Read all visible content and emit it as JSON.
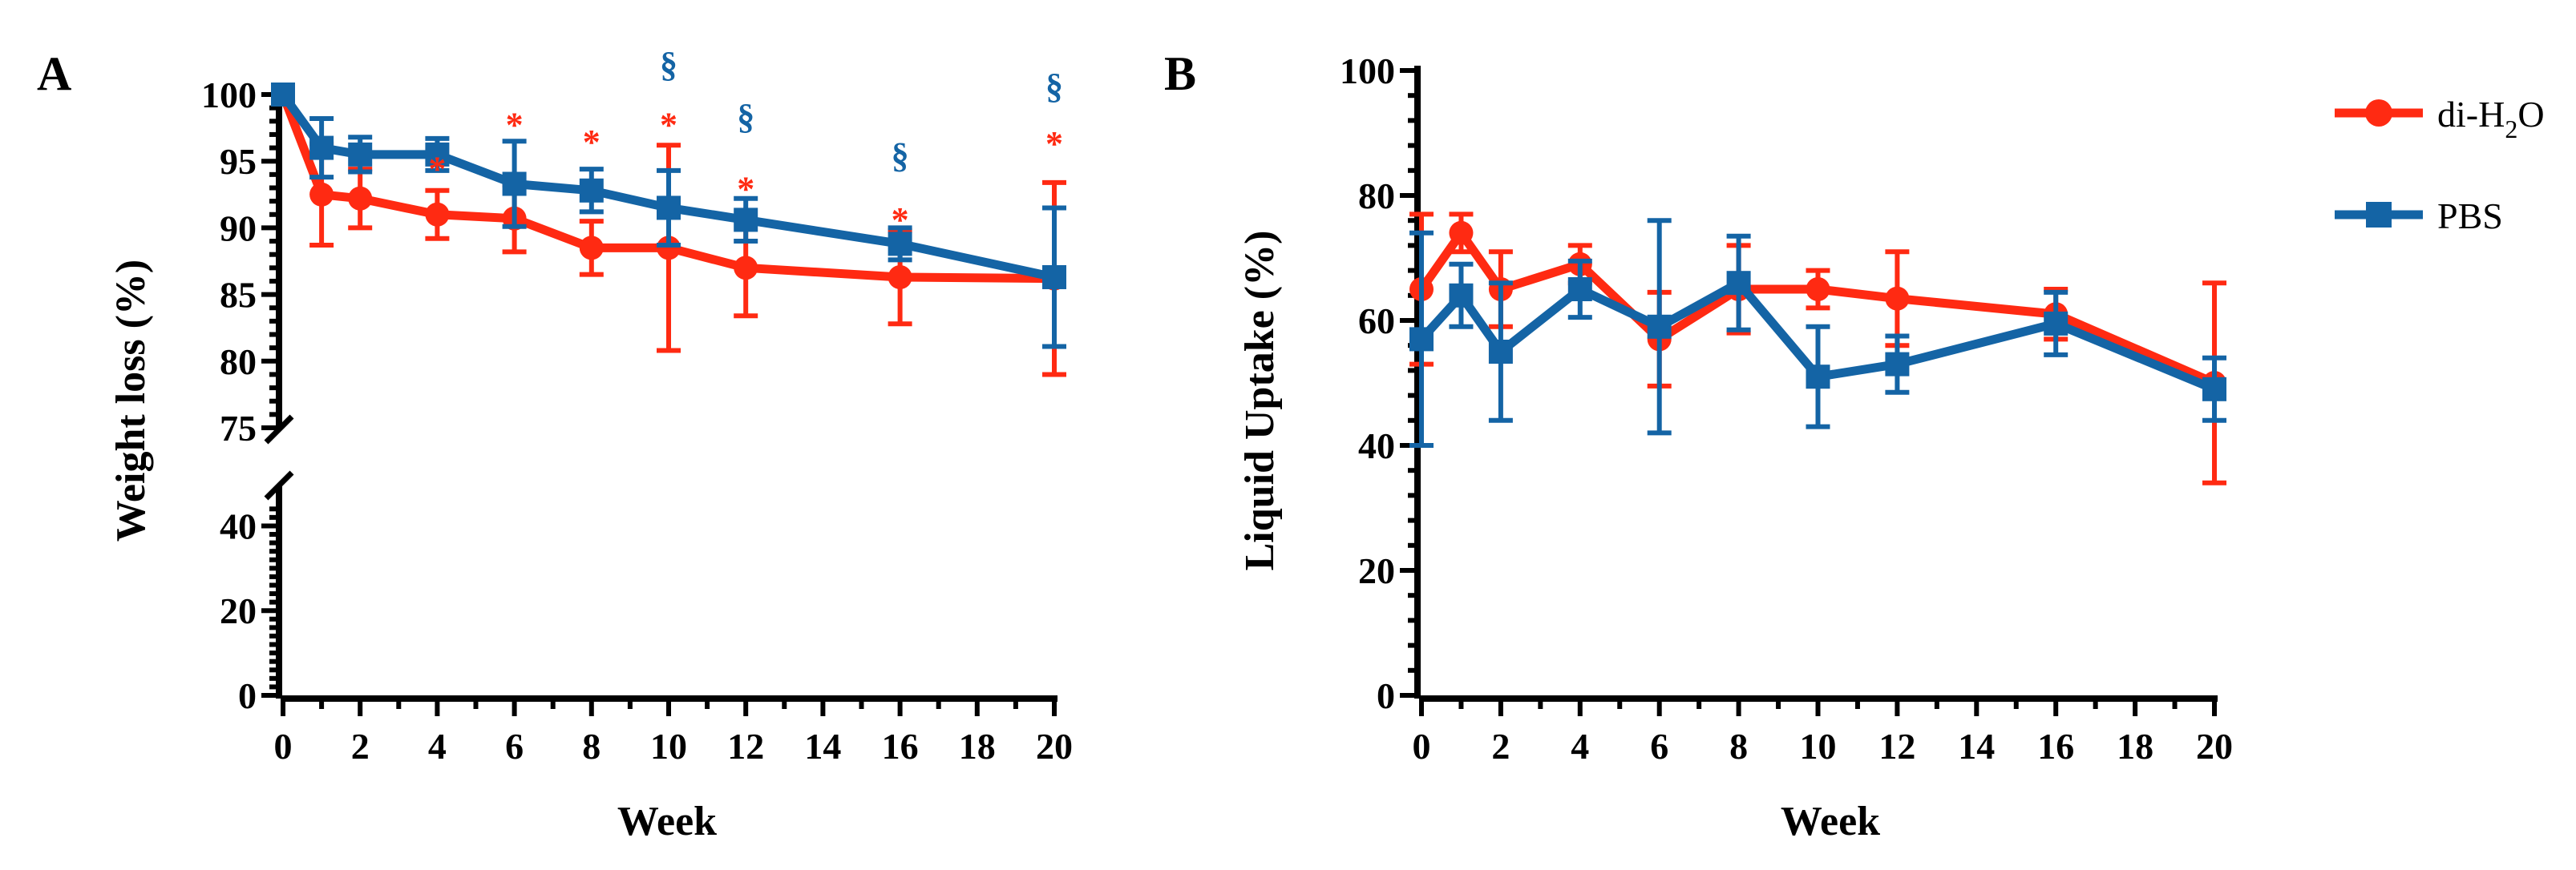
{
  "colors": {
    "series1": "#ff2a12",
    "series2": "#1464a5",
    "axis": "#000000"
  },
  "chart_data": [
    {
      "panel": "A",
      "type": "line",
      "xlabel": "Week",
      "ylabel": "Weight loss (%)",
      "xlim": [
        0,
        20
      ],
      "xticks": [
        "0",
        "2",
        "4",
        "6",
        "8",
        "10",
        "12",
        "14",
        "16",
        "18",
        "20"
      ],
      "y_axis_break": true,
      "y_upper_range": [
        75,
        100
      ],
      "y_upper_ticks": [
        "75",
        "80",
        "85",
        "90",
        "95",
        "100"
      ],
      "y_lower_range": [
        0,
        45
      ],
      "y_lower_ticks": [
        "0",
        "20",
        "40"
      ],
      "series": [
        {
          "name": "di-H2O",
          "color_key": "series1",
          "marker": "circle",
          "x": [
            0,
            1,
            2,
            4,
            6,
            8,
            10,
            12,
            16,
            20
          ],
          "y": [
            100,
            92.5,
            92.2,
            91,
            90.7,
            88.5,
            88.5,
            87,
            86.3,
            86.2
          ],
          "err": [
            0.5,
            3.8,
            2.2,
            1.8,
            2.5,
            2,
            7.7,
            3.6,
            3.5,
            7.2
          ]
        },
        {
          "name": "PBS",
          "color_key": "series2",
          "marker": "square",
          "x": [
            0,
            1,
            2,
            4,
            6,
            8,
            10,
            12,
            16,
            20
          ],
          "y": [
            100,
            96,
            95.5,
            95.5,
            93.3,
            92.8,
            91.5,
            90.6,
            88.8,
            86.3
          ],
          "err": [
            0.5,
            2.2,
            1.3,
            1.2,
            3.2,
            1.6,
            2.8,
            1.6,
            1.2,
            5.2
          ]
        }
      ],
      "annotations": [
        {
          "symbol": "*",
          "color_key": "series1",
          "x": 4,
          "y": 94.5
        },
        {
          "symbol": "*",
          "color_key": "series1",
          "x": 6,
          "y": 97.8
        },
        {
          "symbol": "*",
          "color_key": "series1",
          "x": 8,
          "y": 96.5
        },
        {
          "symbol": "*",
          "color_key": "series1",
          "x": 10,
          "y": 97.8
        },
        {
          "symbol": "*",
          "color_key": "series1",
          "x": 12,
          "y": 93
        },
        {
          "symbol": "*",
          "color_key": "series1",
          "x": 16,
          "y": 90.7
        },
        {
          "symbol": "*",
          "color_key": "series1",
          "x": 20,
          "y": 96.4
        },
        {
          "symbol": "§",
          "color_key": "series2",
          "x": 10,
          "y": 102.3
        },
        {
          "symbol": "§",
          "color_key": "series2",
          "x": 12,
          "y": 98.4
        },
        {
          "symbol": "§",
          "color_key": "series2",
          "x": 16,
          "y": 95.5
        },
        {
          "symbol": "§",
          "color_key": "series2",
          "x": 20,
          "y": 100.7
        }
      ]
    },
    {
      "panel": "B",
      "type": "line",
      "xlabel": "Week",
      "ylabel": "Liquid Uptake (%)",
      "xlim": [
        0,
        20
      ],
      "xticks": [
        "0",
        "2",
        "4",
        "6",
        "8",
        "10",
        "12",
        "14",
        "16",
        "18",
        "20"
      ],
      "ylim": [
        0,
        100
      ],
      "yticks": [
        "0",
        "20",
        "40",
        "60",
        "80",
        "100"
      ],
      "series": [
        {
          "name": "di-H2O",
          "color_key": "series1",
          "marker": "circle",
          "x": [
            0,
            1,
            2,
            4,
            6,
            8,
            10,
            12,
            16,
            20
          ],
          "y": [
            65,
            74,
            65,
            69,
            57,
            65,
            65,
            63.5,
            61,
            50
          ],
          "err": [
            12,
            3,
            6,
            3,
            7.5,
            7,
            3,
            7.5,
            4,
            16
          ]
        },
        {
          "name": "PBS",
          "color_key": "series2",
          "marker": "square",
          "x": [
            0,
            1,
            2,
            4,
            6,
            8,
            10,
            12,
            16,
            20
          ],
          "y": [
            57,
            64,
            55,
            65,
            59,
            66,
            51,
            53,
            59.5,
            49
          ],
          "err": [
            17,
            5,
            11,
            4.5,
            17,
            7.5,
            8,
            4.5,
            5,
            5
          ]
        }
      ]
    }
  ],
  "figure": {
    "panel_a_letter": "A",
    "panel_b_letter": "B",
    "legend": [
      {
        "label": "di-H",
        "subscript": "2",
        "suffix": "O",
        "color_key": "series1",
        "marker": "circle"
      },
      {
        "label": "PBS",
        "subscript": "",
        "suffix": "",
        "color_key": "series2",
        "marker": "square"
      }
    ]
  }
}
